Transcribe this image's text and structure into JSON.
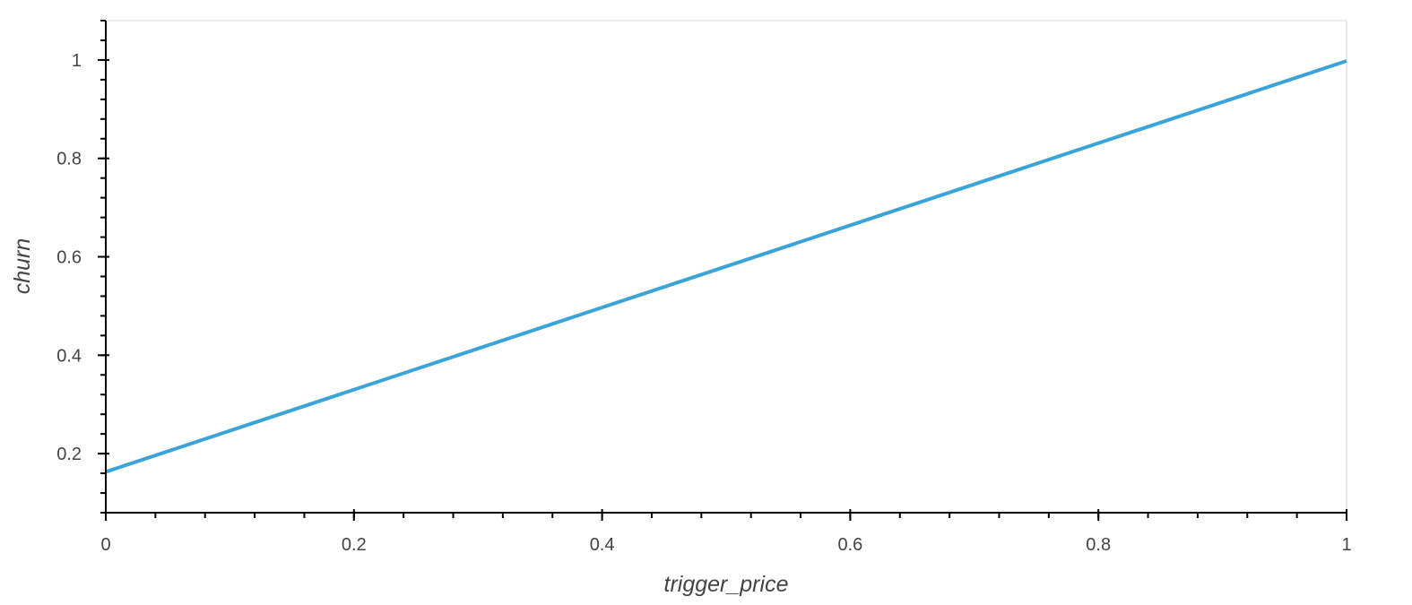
{
  "chart_data": {
    "type": "line",
    "title": "",
    "xlabel": "trigger_price",
    "ylabel": "churn",
    "xlim": [
      0,
      1
    ],
    "ylim": [
      0.08,
      1.08
    ],
    "x_ticks": [
      0,
      0.2,
      0.4,
      0.6,
      0.8,
      1
    ],
    "x_tick_labels": [
      "0",
      "0.2",
      "0.4",
      "0.6",
      "0.8",
      "1"
    ],
    "y_ticks": [
      0.2,
      0.4,
      0.6,
      0.8,
      1
    ],
    "y_tick_labels": [
      "0.2",
      "0.4",
      "0.6",
      "0.8",
      "1"
    ],
    "x_minor_step": 0.04,
    "y_minor_step": 0.04,
    "grid": false,
    "legend": "none",
    "series": [
      {
        "color": "#3aa3d8",
        "x": [
          0,
          1
        ],
        "y": [
          0.163,
          0.998
        ]
      }
    ]
  }
}
